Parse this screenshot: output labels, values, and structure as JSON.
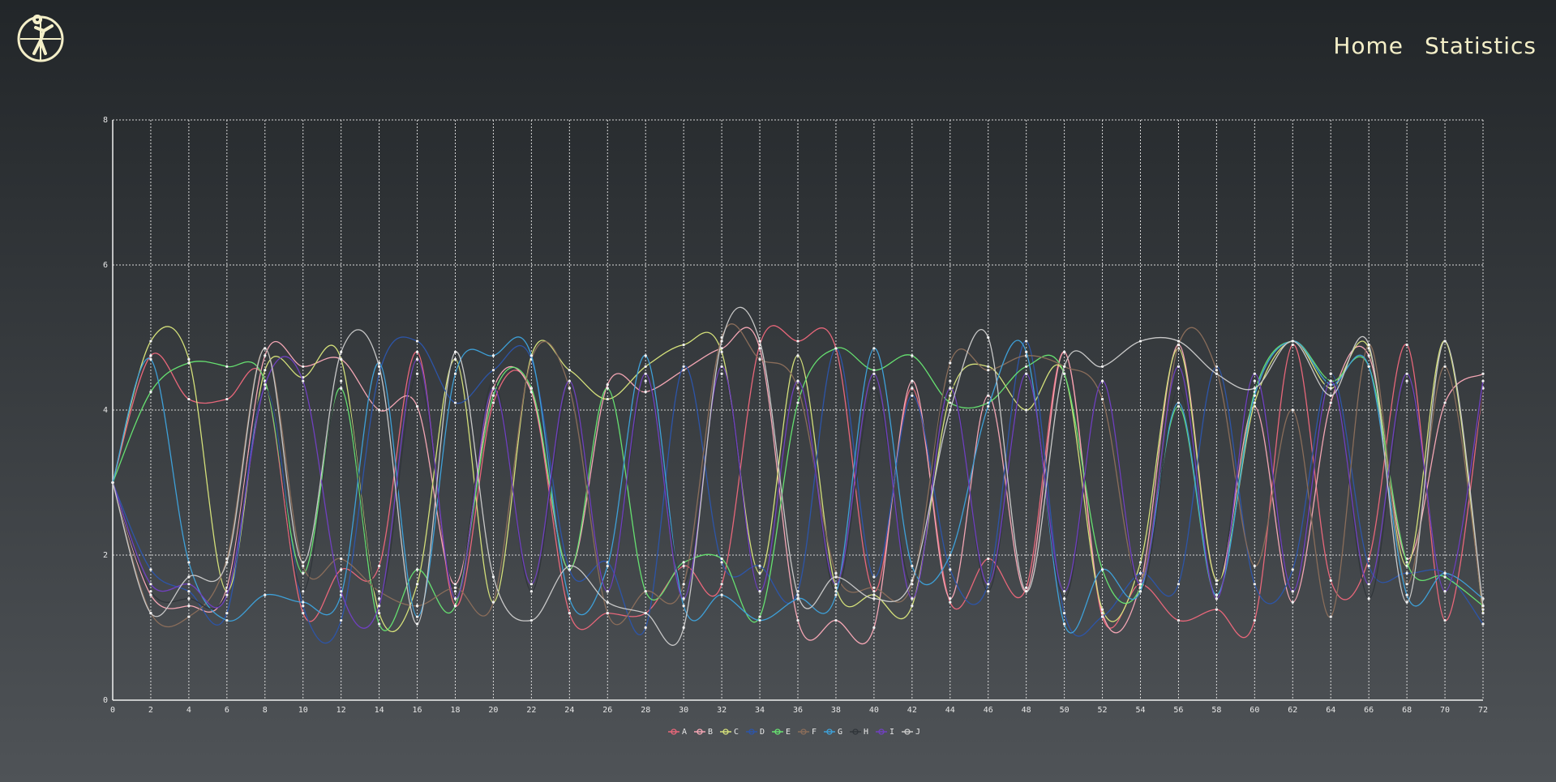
{
  "nav": {
    "items": [
      "Home",
      "Statistics"
    ]
  },
  "chart_data": {
    "type": "line",
    "grid": true,
    "legend": "bottom",
    "x": [
      0,
      2,
      4,
      6,
      8,
      10,
      12,
      14,
      16,
      18,
      20,
      22,
      24,
      26,
      28,
      30,
      32,
      34,
      36,
      38,
      40,
      42,
      44,
      46,
      48,
      50,
      52,
      54,
      56,
      58,
      60,
      62,
      64,
      66,
      68,
      70,
      72
    ],
    "xlim": [
      0,
      72
    ],
    "xticks": [
      0,
      2,
      4,
      6,
      8,
      10,
      12,
      14,
      16,
      18,
      20,
      22,
      24,
      26,
      28,
      30,
      32,
      34,
      36,
      38,
      40,
      42,
      44,
      46,
      48,
      50,
      52,
      54,
      56,
      58,
      60,
      62,
      64,
      66,
      68,
      70,
      72
    ],
    "ylim": [
      0,
      8
    ],
    "yticks": [
      0,
      2,
      4,
      6,
      8
    ],
    "series": [
      {
        "name": "A",
        "color": "#e8677a",
        "values": [
          3,
          4.75,
          4.15,
          4.15,
          4.4,
          1.2,
          1.8,
          1.85,
          4.8,
          1.3,
          4.1,
          4.25,
          1.2,
          1.2,
          1.2,
          1.85,
          1.6,
          4.9,
          4.95,
          4.85,
          1.5,
          4.3,
          1.35,
          1.95,
          1.55,
          4.8,
          1.15,
          1.6,
          1.1,
          1.25,
          1.1,
          4.9,
          1.65,
          1.95,
          4.9,
          1.1,
          4.3
        ]
      },
      {
        "name": "B",
        "color": "#f4a6b4",
        "values": [
          3,
          1.45,
          1.3,
          1.55,
          4.75,
          4.6,
          4.7,
          4.0,
          4.05,
          1.6,
          4.3,
          4.25,
          1.8,
          4.35,
          4.25,
          4.55,
          4.85,
          4.85,
          1.1,
          1.1,
          1.0,
          4.4,
          1.4,
          4.2,
          1.5,
          4.8,
          1.2,
          1.6,
          4.9,
          1.65,
          4.05,
          1.35,
          4.1,
          4.75,
          1.95,
          4.1,
          4.5
        ]
      },
      {
        "name": "C",
        "color": "#d4e07a",
        "values": [
          3,
          4.95,
          4.7,
          1.5,
          4.55,
          4.45,
          4.7,
          1.2,
          1.6,
          4.7,
          1.35,
          4.75,
          4.55,
          4.15,
          4.6,
          4.9,
          4.8,
          1.75,
          4.75,
          1.55,
          1.45,
          1.3,
          4.2,
          4.6,
          4.0,
          4.5,
          1.25,
          1.9,
          4.85,
          1.65,
          4.1,
          4.95,
          4.3,
          4.85,
          1.85,
          4.95,
          1.2
        ]
      },
      {
        "name": "D",
        "color": "#2d55a8",
        "values": [
          3,
          1.8,
          1.5,
          1.2,
          4.3,
          1.3,
          1.1,
          4.5,
          4.95,
          4.1,
          4.55,
          4.7,
          1.8,
          1.9,
          1.0,
          4.6,
          1.9,
          1.85,
          1.5,
          4.85,
          1.7,
          4.2,
          1.8,
          1.6,
          4.95,
          1.2,
          1.15,
          1.75,
          1.6,
          4.6,
          1.6,
          1.8,
          4.5,
          1.85,
          1.75,
          1.75,
          1.05
        ]
      },
      {
        "name": "E",
        "color": "#66e070",
        "values": [
          3,
          4.25,
          4.65,
          4.6,
          4.4,
          1.75,
          4.3,
          1.05,
          1.8,
          1.3,
          4.2,
          4.3,
          1.8,
          4.3,
          1.5,
          1.9,
          1.95,
          1.15,
          4.1,
          4.85,
          4.55,
          4.75,
          4.1,
          4.1,
          4.6,
          4.5,
          1.8,
          1.55,
          4.05,
          1.45,
          4.25,
          4.95,
          4.4,
          4.6,
          1.9,
          1.7,
          1.3
        ]
      },
      {
        "name": "F",
        "color": "#8a6d5a",
        "values": [
          3,
          1.2,
          1.15,
          1.95,
          4.85,
          1.85,
          1.95,
          1.5,
          1.3,
          1.55,
          1.35,
          4.7,
          4.3,
          1.2,
          1.5,
          1.6,
          5.0,
          4.7,
          4.3,
          1.75,
          1.55,
          1.6,
          4.65,
          4.55,
          4.75,
          4.6,
          4.15,
          1.65,
          4.9,
          4.55,
          1.85,
          4.0,
          1.15,
          4.9,
          1.6,
          4.6,
          1.25
        ]
      },
      {
        "name": "G",
        "color": "#3ea0d8",
        "values": [
          3,
          4.7,
          1.9,
          1.1,
          1.45,
          1.35,
          1.45,
          4.65,
          1.15,
          4.5,
          4.75,
          4.75,
          1.4,
          1.85,
          4.75,
          1.3,
          1.45,
          1.1,
          1.4,
          1.45,
          4.85,
          1.85,
          2.0,
          4.05,
          4.8,
          1.05,
          1.8,
          1.5,
          4.1,
          1.45,
          4.2,
          4.95,
          4.35,
          4.6,
          1.45,
          1.75,
          1.4
        ]
      },
      {
        "name": "H",
        "color": "#30353a",
        "values": [
          3,
          1.5,
          1.4,
          1.5,
          4.3,
          1.5,
          4.4,
          1.4,
          4.5,
          1.5,
          4.4,
          1.5,
          4.3,
          1.5,
          4.4,
          1.6,
          4.5,
          1.5,
          4.4,
          1.5,
          4.3,
          1.6,
          4.4,
          1.5,
          4.5,
          1.4,
          4.4,
          1.5,
          4.3,
          1.6,
          4.4,
          1.5,
          4.5,
          1.4,
          4.4,
          1.5,
          4.3
        ]
      },
      {
        "name": "I",
        "color": "#7040c0",
        "values": [
          3,
          1.6,
          1.6,
          1.45,
          4.35,
          4.4,
          1.5,
          1.3,
          4.7,
          1.4,
          4.3,
          1.6,
          4.4,
          1.5,
          4.5,
          1.4,
          4.6,
          1.5,
          4.4,
          1.6,
          4.5,
          1.4,
          4.3,
          1.6,
          4.5,
          1.5,
          4.4,
          1.6,
          4.6,
          1.4,
          4.5,
          1.5,
          4.4,
          1.6,
          4.5,
          1.5,
          4.4
        ]
      },
      {
        "name": "J",
        "color": "#c8c8c8",
        "values": [
          3,
          1.2,
          1.7,
          1.9,
          4.85,
          1.9,
          4.8,
          4.6,
          1.05,
          4.8,
          1.7,
          1.1,
          1.85,
          1.35,
          1.2,
          1.0,
          4.95,
          4.95,
          1.45,
          1.7,
          1.4,
          1.65,
          4.0,
          5.0,
          1.5,
          4.6,
          4.6,
          4.95,
          4.95,
          4.5,
          4.3,
          4.95,
          4.2,
          4.9,
          1.35,
          4.95,
          1.3
        ]
      }
    ]
  }
}
